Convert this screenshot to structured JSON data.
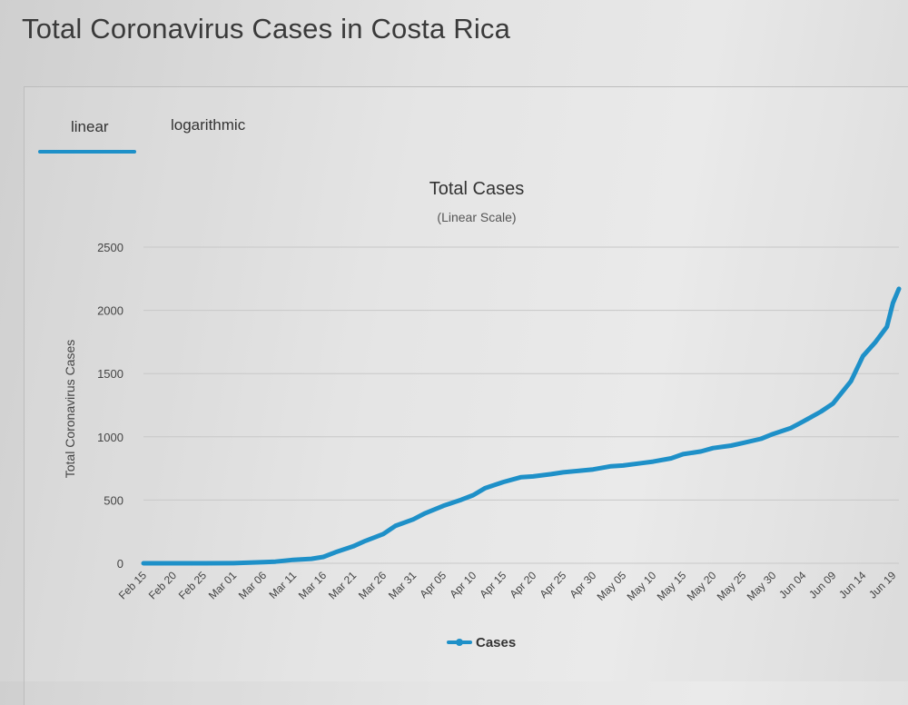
{
  "page": {
    "title": "Total Coronavirus Cases in Costa Rica"
  },
  "tabs": [
    {
      "label": "linear",
      "active": true
    },
    {
      "label": "logarithmic",
      "active": false
    }
  ],
  "colors": {
    "series": "#1e90c8",
    "tab_underline": "#1e90c8",
    "text": "#333333",
    "grid": "#c8c8c8"
  },
  "chart_data": {
    "type": "line",
    "title": "Total Cases",
    "subtitle": "(Linear Scale)",
    "ylabel": "Total Coronavirus Cases",
    "xlabel": "",
    "ylim": [
      0,
      2500
    ],
    "yticks": [
      0,
      500,
      1000,
      1500,
      2000,
      2500
    ],
    "grid": true,
    "legend_position": "bottom-center",
    "xticks": [
      "Feb 15",
      "Feb 20",
      "Feb 25",
      "Mar 01",
      "Mar 06",
      "Mar 11",
      "Mar 16",
      "Mar 21",
      "Mar 26",
      "Mar 31",
      "Apr 05",
      "Apr 10",
      "Apr 15",
      "Apr 20",
      "Apr 25",
      "Apr 30",
      "May 05",
      "May 10",
      "May 15",
      "May 20",
      "May 25",
      "May 30",
      "Jun 04",
      "Jun 09",
      "Jun 14",
      "Jun 19"
    ],
    "x": [
      "Feb 15",
      "Feb 20",
      "Feb 25",
      "Mar 01",
      "Mar 06",
      "Mar 08",
      "Mar 11",
      "Mar 14",
      "Mar 16",
      "Mar 18",
      "Mar 21",
      "Mar 23",
      "Mar 26",
      "Mar 28",
      "Mar 31",
      "Apr 02",
      "Apr 05",
      "Apr 08",
      "Apr 10",
      "Apr 12",
      "Apr 15",
      "Apr 18",
      "Apr 20",
      "Apr 23",
      "Apr 25",
      "Apr 28",
      "Apr 30",
      "May 03",
      "May 05",
      "May 08",
      "May 10",
      "May 13",
      "May 15",
      "May 18",
      "May 20",
      "May 23",
      "May 25",
      "May 28",
      "May 30",
      "Jun 02",
      "Jun 04",
      "Jun 07",
      "Jun 09",
      "Jun 12",
      "Jun 14",
      "Jun 16",
      "Jun 18",
      "Jun 19",
      "Jun 20"
    ],
    "series": [
      {
        "name": "Cases",
        "values": [
          0,
          0,
          0,
          1,
          9,
          13,
          27,
          35,
          50,
          87,
          134,
          177,
          231,
          295,
          347,
          396,
          454,
          502,
          539,
          595,
          642,
          681,
          687,
          705,
          719,
          733,
          742,
          767,
          773,
          792,
          804,
          830,
          863,
          884,
          911,
          930,
          951,
          984,
          1022,
          1070,
          1120,
          1200,
          1263,
          1440,
          1639,
          1744,
          1871,
          2058,
          2170
        ]
      }
    ]
  }
}
